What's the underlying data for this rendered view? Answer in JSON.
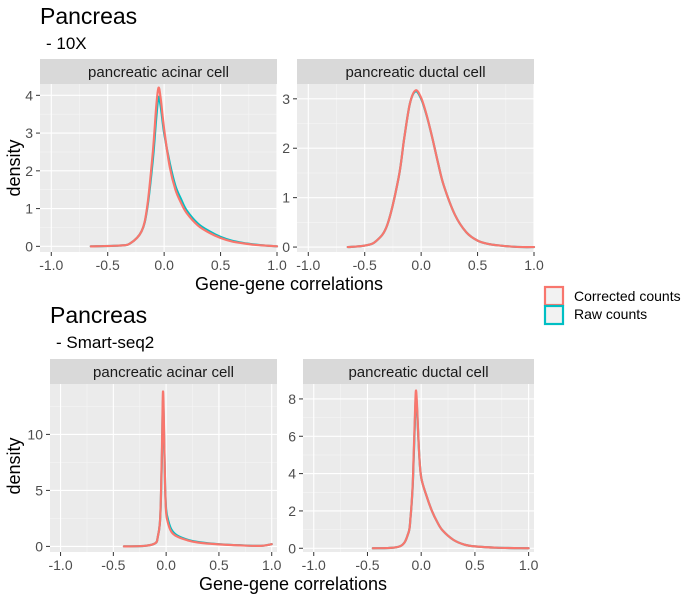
{
  "chart_data": [
    {
      "type": "line",
      "title": "Pancreas",
      "subtitle": "- 10X",
      "xlabel": "Gene-gene correlations",
      "ylabel": "density",
      "facets": [
        {
          "strip": "pancreatic acinar cell",
          "xlim": [
            -1.1,
            1.0
          ],
          "ylim": [
            -0.15,
            4.3
          ],
          "xticks": [
            -1.0,
            -0.5,
            0.0,
            0.5,
            1.0
          ],
          "xtick_labels": [
            "-1.0",
            "-0.5",
            "0.0",
            "0.5",
            "1.0"
          ],
          "yticks": [
            0,
            1,
            2,
            3,
            4
          ],
          "ytick_labels": [
            "0",
            "1",
            "2",
            "3",
            "4"
          ],
          "series": [
            {
              "name": "Raw counts",
              "x": [
                -0.65,
                -0.4,
                -0.3,
                -0.2,
                -0.15,
                -0.1,
                -0.07,
                -0.05,
                -0.03,
                0.0,
                0.05,
                0.1,
                0.15,
                0.2,
                0.3,
                0.4,
                0.5,
                0.6,
                0.7,
                0.8,
                0.9,
                1.0
              ],
              "y": [
                0.0,
                0.02,
                0.08,
                0.4,
                1.0,
                2.3,
                3.4,
                3.95,
                3.7,
                3.0,
                2.2,
                1.6,
                1.25,
                0.95,
                0.6,
                0.4,
                0.25,
                0.15,
                0.09,
                0.05,
                0.02,
                0.0
              ]
            },
            {
              "name": "Corrected counts",
              "x": [
                -0.65,
                -0.4,
                -0.3,
                -0.2,
                -0.15,
                -0.1,
                -0.07,
                -0.05,
                -0.03,
                0.0,
                0.05,
                0.1,
                0.15,
                0.2,
                0.3,
                0.4,
                0.5,
                0.6,
                0.7,
                0.8,
                0.9,
                1.0
              ],
              "y": [
                0.0,
                0.02,
                0.08,
                0.4,
                1.05,
                2.5,
                3.7,
                4.2,
                3.9,
                3.1,
                2.1,
                1.5,
                1.15,
                0.88,
                0.55,
                0.36,
                0.22,
                0.13,
                0.08,
                0.04,
                0.02,
                0.0
              ]
            }
          ]
        },
        {
          "strip": "pancreatic ductal cell",
          "xlim": [
            -1.1,
            1.0
          ],
          "ylim": [
            -0.1,
            3.3
          ],
          "xticks": [
            -1.0,
            -0.5,
            0.0,
            0.5,
            1.0
          ],
          "xtick_labels": [
            "-1.0",
            "-0.5",
            "0.0",
            "0.5",
            "1.0"
          ],
          "yticks": [
            0,
            1,
            2,
            3
          ],
          "ytick_labels": [
            "0",
            "1",
            "2",
            "3"
          ],
          "series": [
            {
              "name": "Raw counts",
              "x": [
                -0.65,
                -0.5,
                -0.4,
                -0.3,
                -0.2,
                -0.15,
                -0.1,
                -0.05,
                0.0,
                0.05,
                0.1,
                0.15,
                0.2,
                0.3,
                0.4,
                0.5,
                0.6,
                0.7,
                0.8,
                0.9,
                1.0
              ],
              "y": [
                0.0,
                0.03,
                0.12,
                0.45,
                1.4,
                2.2,
                2.9,
                3.15,
                3.0,
                2.65,
                2.2,
                1.7,
                1.25,
                0.65,
                0.3,
                0.13,
                0.06,
                0.03,
                0.01,
                0.0,
                0.0
              ]
            },
            {
              "name": "Corrected counts",
              "x": [
                -0.65,
                -0.5,
                -0.4,
                -0.3,
                -0.2,
                -0.15,
                -0.1,
                -0.05,
                0.0,
                0.05,
                0.1,
                0.15,
                0.2,
                0.3,
                0.4,
                0.5,
                0.6,
                0.7,
                0.8,
                0.9,
                1.0
              ],
              "y": [
                0.0,
                0.03,
                0.12,
                0.45,
                1.4,
                2.2,
                2.9,
                3.17,
                3.02,
                2.66,
                2.2,
                1.7,
                1.25,
                0.65,
                0.3,
                0.13,
                0.06,
                0.03,
                0.01,
                0.0,
                0.0
              ]
            }
          ]
        }
      ]
    },
    {
      "type": "line",
      "title": "Pancreas",
      "subtitle": "- Smart-seq2",
      "xlabel": "Gene-gene correlations",
      "ylabel": "density",
      "facets": [
        {
          "strip": "pancreatic acinar cell",
          "xlim": [
            -1.1,
            1.05
          ],
          "ylim": [
            -0.5,
            14.5
          ],
          "xticks": [
            -1.0,
            -0.5,
            0.0,
            0.5,
            1.0
          ],
          "xtick_labels": [
            "-1.0",
            "-0.5",
            "0.0",
            "0.5",
            "1.0"
          ],
          "yticks": [
            0,
            5,
            10
          ],
          "ytick_labels": [
            "0",
            "5",
            "10"
          ],
          "series": [
            {
              "name": "Raw counts",
              "x": [
                -0.4,
                -0.2,
                -0.1,
                -0.08,
                -0.06,
                -0.05,
                -0.04,
                -0.03,
                -0.02,
                -0.01,
                0.0,
                0.02,
                0.05,
                0.1,
                0.2,
                0.3,
                0.5,
                0.7,
                0.9,
                1.0
              ],
              "y": [
                0.0,
                0.05,
                0.3,
                0.8,
                2.0,
                4.0,
                8.0,
                13.0,
                10.0,
                5.5,
                3.3,
                2.3,
                1.5,
                1.0,
                0.6,
                0.4,
                0.2,
                0.1,
                0.05,
                0.2
              ]
            },
            {
              "name": "Corrected counts",
              "x": [
                -0.4,
                -0.2,
                -0.1,
                -0.08,
                -0.06,
                -0.05,
                -0.04,
                -0.03,
                -0.02,
                -0.01,
                0.0,
                0.02,
                0.05,
                0.1,
                0.2,
                0.3,
                0.5,
                0.7,
                0.9,
                1.0
              ],
              "y": [
                0.0,
                0.05,
                0.3,
                0.8,
                2.0,
                4.2,
                8.5,
                13.8,
                10.5,
                5.5,
                3.0,
                2.0,
                1.3,
                0.9,
                0.55,
                0.35,
                0.18,
                0.09,
                0.05,
                0.2
              ]
            }
          ]
        },
        {
          "strip": "pancreatic ductal cell",
          "xlim": [
            -1.1,
            1.05
          ],
          "ylim": [
            -0.2,
            8.8
          ],
          "xticks": [
            -1.0,
            -0.5,
            0.0,
            0.5,
            1.0
          ],
          "xtick_labels": [
            "-1.0",
            "-0.5",
            "0.0",
            "0.5",
            "1.0"
          ],
          "yticks": [
            0,
            2,
            4,
            6,
            8
          ],
          "ytick_labels": [
            "0",
            "2",
            "4",
            "6",
            "8"
          ],
          "series": [
            {
              "name": "Raw counts",
              "x": [
                -0.45,
                -0.2,
                -0.12,
                -0.1,
                -0.08,
                -0.07,
                -0.06,
                -0.05,
                -0.04,
                -0.02,
                0.0,
                0.05,
                0.1,
                0.15,
                0.2,
                0.3,
                0.4,
                0.5,
                0.7,
                1.0
              ],
              "y": [
                0.0,
                0.1,
                0.8,
                1.6,
                3.2,
                4.8,
                6.5,
                8.1,
                7.6,
                5.2,
                3.8,
                2.8,
                2.0,
                1.4,
                0.95,
                0.45,
                0.2,
                0.1,
                0.03,
                0.0
              ]
            },
            {
              "name": "Corrected counts",
              "x": [
                -0.45,
                -0.2,
                -0.12,
                -0.1,
                -0.08,
                -0.07,
                -0.06,
                -0.05,
                -0.04,
                -0.02,
                0.0,
                0.05,
                0.1,
                0.15,
                0.2,
                0.3,
                0.4,
                0.5,
                0.7,
                1.0
              ],
              "y": [
                0.0,
                0.1,
                0.8,
                1.6,
                3.3,
                5.0,
                6.8,
                8.4,
                7.8,
                5.2,
                3.8,
                2.8,
                2.0,
                1.4,
                0.95,
                0.45,
                0.2,
                0.1,
                0.03,
                0.0
              ]
            }
          ]
        }
      ]
    }
  ],
  "legend": {
    "placement": "right",
    "items": [
      {
        "label": "Corrected counts",
        "color": "#F8766D"
      },
      {
        "label": "Raw counts",
        "color": "#00BFC4"
      }
    ]
  },
  "style": {
    "panel_bg": "#EBEBEB",
    "strip_bg": "#D9D9D9",
    "grid_major": "#FFFFFF",
    "grid_minor": "#F5F5F5",
    "series_colors": {
      "Corrected counts": "#F8766D",
      "Raw counts": "#00BFC4"
    }
  }
}
